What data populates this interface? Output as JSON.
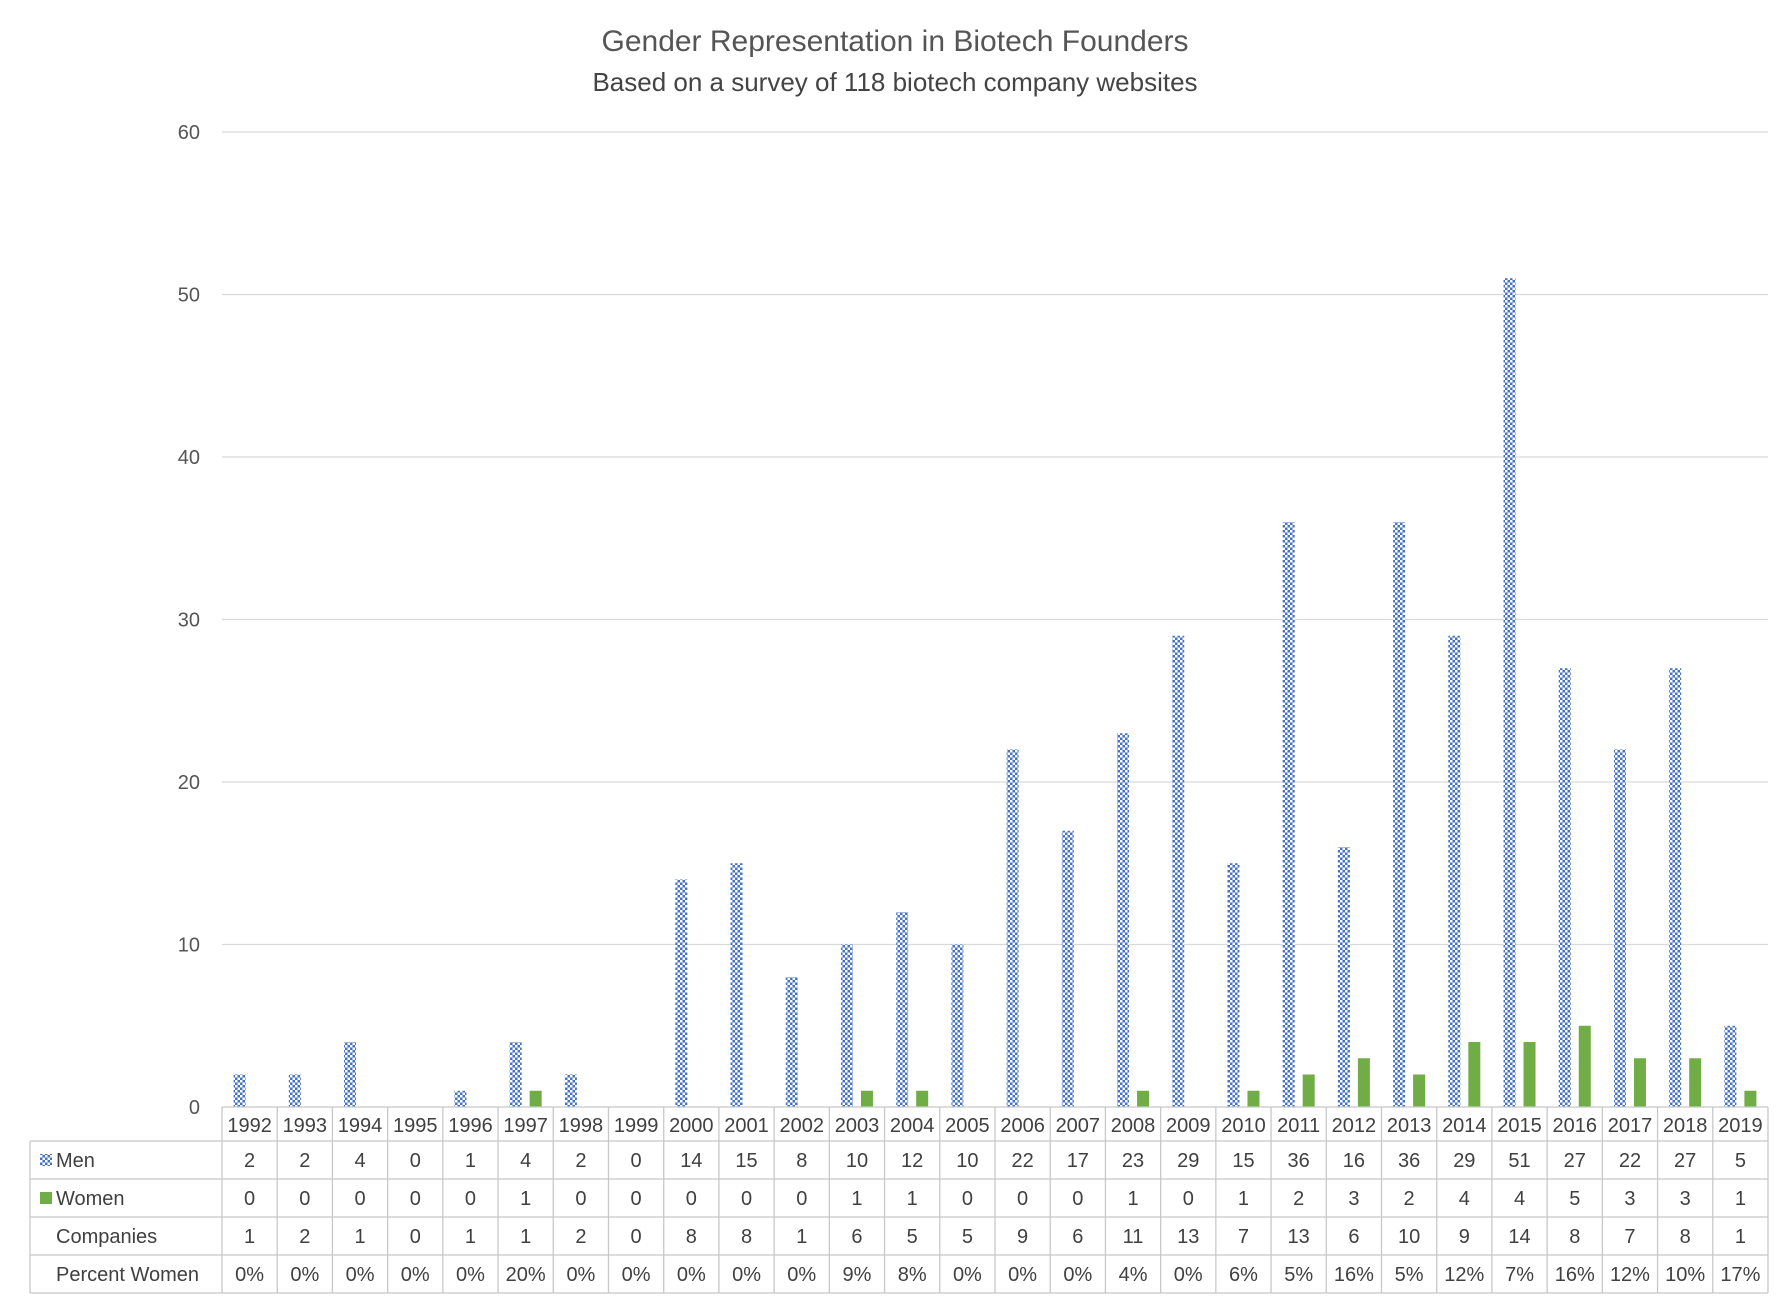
{
  "chart_data": {
    "type": "bar",
    "title": "Gender Representation in Biotech Founders",
    "subtitle": "Based on a survey of 118 biotech company websites",
    "categories": [
      "1992",
      "1993",
      "1994",
      "1995",
      "1996",
      "1997",
      "1998",
      "1999",
      "2000",
      "2001",
      "2002",
      "2003",
      "2004",
      "2005",
      "2006",
      "2007",
      "2008",
      "2009",
      "2010",
      "2011",
      "2012",
      "2013",
      "2014",
      "2015",
      "2016",
      "2017",
      "2018",
      "2019"
    ],
    "series": [
      {
        "name": "Men",
        "color": "#4472c4",
        "pattern": "checker",
        "values": [
          2,
          2,
          4,
          0,
          1,
          4,
          2,
          0,
          14,
          15,
          8,
          10,
          12,
          10,
          22,
          17,
          23,
          29,
          15,
          36,
          16,
          36,
          29,
          51,
          27,
          22,
          27,
          5
        ]
      },
      {
        "name": "Women",
        "color": "#70ad47",
        "pattern": "solid",
        "values": [
          0,
          0,
          0,
          0,
          0,
          1,
          0,
          0,
          0,
          0,
          0,
          1,
          1,
          0,
          0,
          0,
          1,
          0,
          1,
          2,
          3,
          2,
          4,
          4,
          5,
          3,
          3,
          1
        ]
      }
    ],
    "yticks": [
      "0",
      "10",
      "20",
      "30",
      "40",
      "50",
      "60"
    ],
    "ylim": [
      0,
      60
    ],
    "grid": true,
    "legend": "data-table",
    "table_rows": [
      {
        "label": "Companies",
        "values": [
          "1",
          "2",
          "1",
          "0",
          "1",
          "1",
          "2",
          "0",
          "8",
          "8",
          "1",
          "6",
          "5",
          "5",
          "9",
          "6",
          "11",
          "13",
          "7",
          "13",
          "6",
          "10",
          "9",
          "14",
          "8",
          "7",
          "8",
          "1"
        ]
      },
      {
        "label": "Percent Women",
        "values": [
          "0%",
          "0%",
          "0%",
          "0%",
          "0%",
          "20%",
          "0%",
          "0%",
          "0%",
          "0%",
          "0%",
          "9%",
          "8%",
          "0%",
          "0%",
          "0%",
          "4%",
          "0%",
          "6%",
          "5%",
          "16%",
          "5%",
          "12%",
          "7%",
          "16%",
          "12%",
          "10%",
          "17%"
        ]
      }
    ]
  }
}
